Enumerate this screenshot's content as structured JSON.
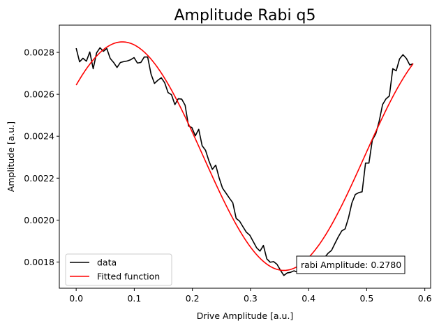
{
  "chart_data": {
    "type": "line",
    "title": "Amplitude Rabi q5",
    "xlabel": "Drive Amplitude [a.u.]",
    "ylabel": "Amplitude [a.u.]",
    "xlim": [
      -0.029,
      0.61
    ],
    "ylim": [
      0.001675,
      0.00293
    ],
    "xticks": [
      0.0,
      0.1,
      0.2,
      0.3,
      0.4,
      0.5,
      0.6
    ],
    "xtick_labels": [
      "0.0",
      "0.1",
      "0.2",
      "0.3",
      "0.4",
      "0.5",
      "0.6"
    ],
    "yticks": [
      0.0018,
      0.002,
      0.0022,
      0.0024,
      0.0026,
      0.0028
    ],
    "ytick_labels": [
      "0.0018",
      "0.0020",
      "0.0022",
      "0.0024",
      "0.0026",
      "0.0028"
    ],
    "grid": false,
    "legend_position": "lower-left",
    "series": [
      {
        "name": "data",
        "color": "#000000",
        "x": [
          0.0,
          0.005859,
          0.011717,
          0.017576,
          0.023434,
          0.029293,
          0.035151,
          0.04101,
          0.046869,
          0.052727,
          0.058586,
          0.064444,
          0.070303,
          0.076162,
          0.08202,
          0.087879,
          0.093737,
          0.099596,
          0.105455,
          0.111313,
          0.117172,
          0.12303,
          0.128889,
          0.134747,
          0.140606,
          0.146465,
          0.152323,
          0.158182,
          0.16404,
          0.169899,
          0.175758,
          0.181616,
          0.187475,
          0.193333,
          0.199192,
          0.20505,
          0.210909,
          0.216768,
          0.222626,
          0.228485,
          0.234343,
          0.240202,
          0.246061,
          0.251919,
          0.257778,
          0.263636,
          0.269495,
          0.275354,
          0.281212,
          0.287071,
          0.292929,
          0.298788,
          0.304646,
          0.310505,
          0.316364,
          0.322222,
          0.328081,
          0.333939,
          0.339798,
          0.345657,
          0.351515,
          0.357374,
          0.363232,
          0.369091,
          0.374949,
          0.380808,
          0.386667,
          0.392525,
          0.398384,
          0.404242,
          0.410101,
          0.41596,
          0.421818,
          0.427677,
          0.433535,
          0.439394,
          0.445253,
          0.451111,
          0.45697,
          0.462828,
          0.468687,
          0.474545,
          0.480404,
          0.486263,
          0.492121,
          0.49798,
          0.503838,
          0.509697,
          0.515556,
          0.521414,
          0.527273,
          0.533131,
          0.53899,
          0.544848,
          0.550707,
          0.556566,
          0.562424,
          0.568283,
          0.574141,
          0.58
        ],
        "y": [
          0.00282,
          0.002755,
          0.002772,
          0.002758,
          0.002802,
          0.002722,
          0.002798,
          0.002822,
          0.002805,
          0.002818,
          0.002771,
          0.002752,
          0.002728,
          0.002752,
          0.002756,
          0.002759,
          0.002765,
          0.002775,
          0.002749,
          0.002752,
          0.002778,
          0.002778,
          0.002696,
          0.002652,
          0.002667,
          0.002679,
          0.002655,
          0.002608,
          0.002598,
          0.002551,
          0.002579,
          0.002577,
          0.002548,
          0.002449,
          0.002441,
          0.002402,
          0.002433,
          0.002355,
          0.002333,
          0.002282,
          0.002242,
          0.002262,
          0.002201,
          0.002152,
          0.002129,
          0.002105,
          0.002083,
          0.002008,
          0.001995,
          0.001968,
          0.001942,
          0.001928,
          0.001898,
          0.001868,
          0.001852,
          0.001879,
          0.001815,
          0.001799,
          0.001802,
          0.001789,
          0.001761,
          0.001736,
          0.001748,
          0.001751,
          0.001758,
          0.001752,
          0.001778,
          0.001795,
          0.001809,
          0.00179,
          0.001795,
          0.00182,
          0.001816,
          0.001822,
          0.001842,
          0.001855,
          0.001888,
          0.00192,
          0.001948,
          0.001958,
          0.002011,
          0.002082,
          0.002122,
          0.002131,
          0.002135,
          0.002272,
          0.002272,
          0.002382,
          0.002411,
          0.002471,
          0.002551,
          0.002578,
          0.002592,
          0.002722,
          0.002712,
          0.002769,
          0.002789,
          0.002771,
          0.00274,
          0.002746
        ]
      },
      {
        "name": "Fitted function",
        "color": "#ff0000",
        "fit_model": "offset + amplitude*cos(2*pi*frequency*x + phase)",
        "fit_params": {
          "offset": 0.002305,
          "amplitude": 0.000545,
          "frequency": 1.799,
          "phase": -0.9
        },
        "x_range": [
          0.0,
          0.58
        ]
      }
    ],
    "annotation": {
      "text": "rabi Amplitude: 0.2780",
      "x": 0.505,
      "y": 0.0018
    }
  }
}
